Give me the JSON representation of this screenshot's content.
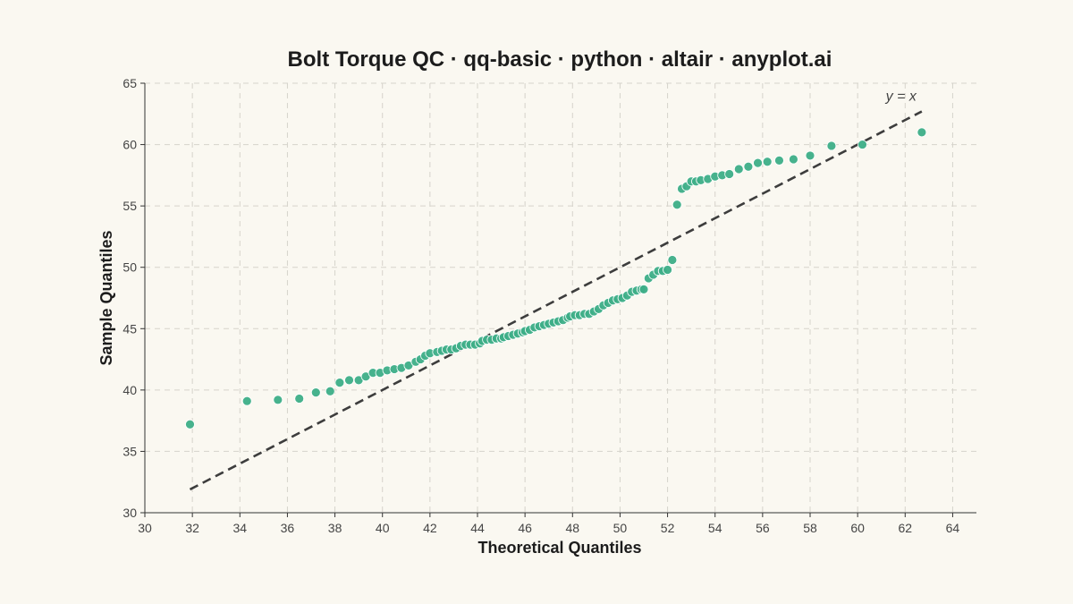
{
  "chart_data": {
    "type": "scatter",
    "title": "Bolt Torque QC · qq-basic · python · altair · anyplot.ai",
    "xlabel": "Theoretical Quantiles",
    "ylabel": "Sample Quantiles",
    "xlim": [
      30,
      65
    ],
    "ylim": [
      30,
      65
    ],
    "x_ticks": [
      30,
      32,
      34,
      36,
      38,
      40,
      42,
      44,
      46,
      48,
      50,
      52,
      54,
      56,
      58,
      60,
      62,
      64
    ],
    "y_ticks": [
      30,
      35,
      40,
      45,
      50,
      55,
      60,
      65
    ],
    "grid": true,
    "point_color": "#3DAE87",
    "reference_line": {
      "label": "y = x",
      "from": [
        31.9,
        31.9
      ],
      "to": [
        62.7,
        62.7
      ],
      "color": "#3d3d3d"
    },
    "points": [
      [
        31.9,
        37.2
      ],
      [
        34.3,
        39.1
      ],
      [
        35.6,
        39.2
      ],
      [
        36.5,
        39.3
      ],
      [
        37.2,
        39.8
      ],
      [
        37.8,
        39.9
      ],
      [
        38.2,
        40.6
      ],
      [
        38.6,
        40.8
      ],
      [
        39.0,
        40.8
      ],
      [
        39.3,
        41.1
      ],
      [
        39.6,
        41.4
      ],
      [
        39.9,
        41.4
      ],
      [
        40.2,
        41.6
      ],
      [
        40.5,
        41.7
      ],
      [
        40.8,
        41.8
      ],
      [
        41.1,
        42.0
      ],
      [
        41.4,
        42.3
      ],
      [
        41.6,
        42.5
      ],
      [
        41.8,
        42.8
      ],
      [
        42.0,
        43.0
      ],
      [
        42.3,
        43.1
      ],
      [
        42.5,
        43.2
      ],
      [
        42.7,
        43.3
      ],
      [
        42.9,
        43.3
      ],
      [
        43.1,
        43.4
      ],
      [
        43.3,
        43.6
      ],
      [
        43.5,
        43.7
      ],
      [
        43.7,
        43.7
      ],
      [
        43.9,
        43.7
      ],
      [
        44.1,
        43.8
      ],
      [
        44.2,
        44.0
      ],
      [
        44.4,
        44.1
      ],
      [
        44.6,
        44.1
      ],
      [
        44.8,
        44.2
      ],
      [
        45.0,
        44.2
      ],
      [
        45.1,
        44.3
      ],
      [
        45.3,
        44.4
      ],
      [
        45.5,
        44.5
      ],
      [
        45.7,
        44.6
      ],
      [
        45.9,
        44.7
      ],
      [
        46.0,
        44.8
      ],
      [
        46.2,
        44.9
      ],
      [
        46.4,
        45.1
      ],
      [
        46.6,
        45.2
      ],
      [
        46.8,
        45.3
      ],
      [
        47.0,
        45.4
      ],
      [
        47.2,
        45.5
      ],
      [
        47.4,
        45.6
      ],
      [
        47.6,
        45.7
      ],
      [
        47.8,
        45.9
      ],
      [
        47.9,
        46.0
      ],
      [
        48.1,
        46.1
      ],
      [
        48.3,
        46.1
      ],
      [
        48.5,
        46.2
      ],
      [
        48.7,
        46.2
      ],
      [
        48.9,
        46.4
      ],
      [
        49.1,
        46.6
      ],
      [
        49.3,
        46.9
      ],
      [
        49.5,
        47.1
      ],
      [
        49.7,
        47.3
      ],
      [
        49.9,
        47.4
      ],
      [
        50.1,
        47.5
      ],
      [
        50.3,
        47.7
      ],
      [
        50.5,
        48.0
      ],
      [
        50.7,
        48.1
      ],
      [
        50.9,
        48.2
      ],
      [
        51.0,
        48.2
      ],
      [
        51.2,
        49.1
      ],
      [
        51.4,
        49.4
      ],
      [
        51.6,
        49.7
      ],
      [
        51.8,
        49.7
      ],
      [
        52.0,
        49.8
      ],
      [
        52.2,
        50.6
      ],
      [
        52.4,
        55.1
      ],
      [
        52.6,
        56.4
      ],
      [
        52.8,
        56.6
      ],
      [
        53.0,
        57.0
      ],
      [
        53.2,
        57.0
      ],
      [
        53.4,
        57.1
      ],
      [
        53.7,
        57.2
      ],
      [
        54.0,
        57.4
      ],
      [
        54.3,
        57.5
      ],
      [
        54.6,
        57.6
      ],
      [
        55.0,
        58.0
      ],
      [
        55.4,
        58.2
      ],
      [
        55.8,
        58.5
      ],
      [
        56.2,
        58.6
      ],
      [
        56.7,
        58.7
      ],
      [
        57.3,
        58.8
      ],
      [
        58.0,
        59.1
      ],
      [
        58.9,
        59.9
      ],
      [
        60.2,
        60.0
      ],
      [
        62.7,
        61.0
      ]
    ]
  }
}
